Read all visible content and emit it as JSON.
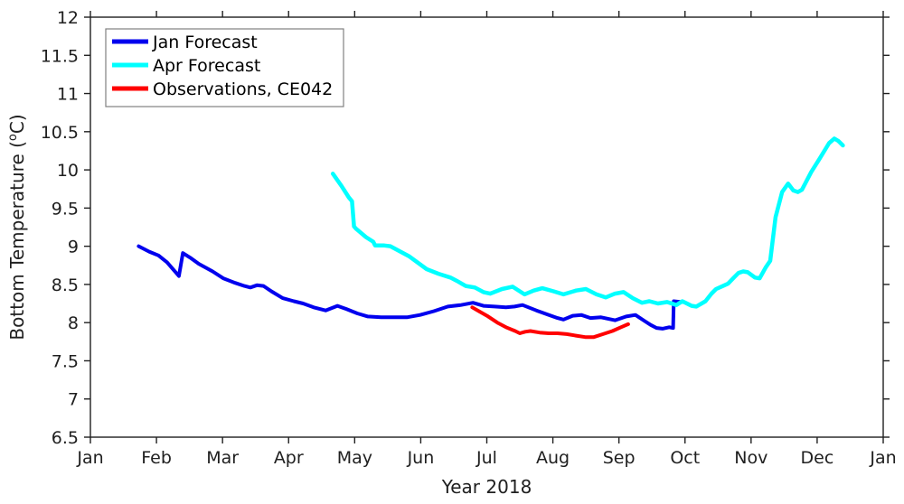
{
  "page": {
    "background": "#ffffff"
  },
  "chart_data": {
    "type": "line",
    "title": "",
    "xlabel": "Year 2018",
    "ylabel_prefix": "Bottom Temperature (",
    "ylabel_superscript": "o",
    "ylabel_suffix": "C)",
    "grid": false,
    "axis_color": "#202020",
    "tick_dir": "out",
    "x_axis": {
      "unit": "months (0 = Jan 1 2018, 12 = Jan 1 2019)",
      "range": [
        0,
        12
      ],
      "tick_positions": [
        0,
        1,
        2,
        3,
        4,
        5,
        6,
        7,
        8,
        9,
        10,
        11,
        12
      ],
      "tick_labels": [
        "Jan",
        "Feb",
        "Mar",
        "Apr",
        "May",
        "Jun",
        "Jul",
        "Aug",
        "Sep",
        "Oct",
        "Nov",
        "Dec",
        "Jan"
      ]
    },
    "y_axis": {
      "range": [
        6.5,
        12
      ],
      "tick_values": [
        6.5,
        7,
        7.5,
        8,
        8.5,
        9,
        9.5,
        10,
        10.5,
        11,
        11.5,
        12
      ],
      "tick_labels": [
        "6.5",
        "7",
        "7.5",
        "8",
        "8.5",
        "9",
        "9.5",
        "10",
        "10.5",
        "11",
        "11.5",
        "12"
      ]
    },
    "legend": {
      "position": "top-left",
      "border_color": "#808080",
      "background": "#ffffff",
      "entries": [
        "Jan Forecast",
        "Apr Forecast",
        "Observations, CE042"
      ]
    },
    "series": [
      {
        "name": "Jan Forecast",
        "color": "#0000EE",
        "line_width": 4,
        "points": [
          [
            0.73,
            9.0
          ],
          [
            0.89,
            8.93
          ],
          [
            1.03,
            8.88
          ],
          [
            1.16,
            8.79
          ],
          [
            1.34,
            8.61
          ],
          [
            1.4,
            8.91
          ],
          [
            1.51,
            8.85
          ],
          [
            1.64,
            8.77
          ],
          [
            1.85,
            8.67
          ],
          [
            2.01,
            8.58
          ],
          [
            2.19,
            8.52
          ],
          [
            2.33,
            8.48
          ],
          [
            2.42,
            8.46
          ],
          [
            2.52,
            8.49
          ],
          [
            2.62,
            8.48
          ],
          [
            2.74,
            8.41
          ],
          [
            2.91,
            8.32
          ],
          [
            3.08,
            8.28
          ],
          [
            3.22,
            8.25
          ],
          [
            3.38,
            8.2
          ],
          [
            3.56,
            8.16
          ],
          [
            3.74,
            8.22
          ],
          [
            3.87,
            8.18
          ],
          [
            4.04,
            8.12
          ],
          [
            4.2,
            8.08
          ],
          [
            4.4,
            8.07
          ],
          [
            4.6,
            8.07
          ],
          [
            4.79,
            8.07
          ],
          [
            4.99,
            8.1
          ],
          [
            5.2,
            8.15
          ],
          [
            5.41,
            8.21
          ],
          [
            5.61,
            8.23
          ],
          [
            5.79,
            8.26
          ],
          [
            5.95,
            8.22
          ],
          [
            6.12,
            8.21
          ],
          [
            6.29,
            8.2
          ],
          [
            6.42,
            8.21
          ],
          [
            6.54,
            8.23
          ],
          [
            6.75,
            8.16
          ],
          [
            6.94,
            8.1
          ],
          [
            7.07,
            8.06
          ],
          [
            7.16,
            8.04
          ],
          [
            7.3,
            8.09
          ],
          [
            7.43,
            8.1
          ],
          [
            7.57,
            8.06
          ],
          [
            7.73,
            8.07
          ],
          [
            7.94,
            8.03
          ],
          [
            8.11,
            8.08
          ],
          [
            8.25,
            8.1
          ],
          [
            8.39,
            8.02
          ],
          [
            8.48,
            7.97
          ],
          [
            8.57,
            7.93
          ],
          [
            8.66,
            7.92
          ],
          [
            8.76,
            7.94
          ],
          [
            8.82,
            7.93
          ],
          [
            8.83,
            8.28
          ],
          [
            8.94,
            8.27
          ]
        ]
      },
      {
        "name": "Apr Forecast",
        "color": "#00FFFF",
        "line_width": 4.5,
        "points": [
          [
            3.67,
            9.95
          ],
          [
            3.8,
            9.79
          ],
          [
            3.91,
            9.64
          ],
          [
            3.96,
            9.59
          ],
          [
            3.99,
            9.26
          ],
          [
            4.02,
            9.23
          ],
          [
            4.17,
            9.12
          ],
          [
            4.28,
            9.06
          ],
          [
            4.31,
            9.01
          ],
          [
            4.45,
            9.01
          ],
          [
            4.54,
            9.0
          ],
          [
            4.82,
            8.87
          ],
          [
            5.09,
            8.7
          ],
          [
            5.27,
            8.64
          ],
          [
            5.45,
            8.59
          ],
          [
            5.54,
            8.55
          ],
          [
            5.68,
            8.48
          ],
          [
            5.82,
            8.46
          ],
          [
            5.95,
            8.4
          ],
          [
            6.05,
            8.38
          ],
          [
            6.23,
            8.44
          ],
          [
            6.39,
            8.47
          ],
          [
            6.57,
            8.37
          ],
          [
            6.71,
            8.42
          ],
          [
            6.84,
            8.45
          ],
          [
            7.01,
            8.41
          ],
          [
            7.16,
            8.37
          ],
          [
            7.35,
            8.42
          ],
          [
            7.5,
            8.44
          ],
          [
            7.66,
            8.37
          ],
          [
            7.8,
            8.33
          ],
          [
            7.94,
            8.38
          ],
          [
            8.07,
            8.4
          ],
          [
            8.21,
            8.32
          ],
          [
            8.35,
            8.26
          ],
          [
            8.46,
            8.28
          ],
          [
            8.59,
            8.25
          ],
          [
            8.73,
            8.27
          ],
          [
            8.87,
            8.23
          ],
          [
            8.96,
            8.28
          ],
          [
            9.1,
            8.22
          ],
          [
            9.17,
            8.21
          ],
          [
            9.31,
            8.28
          ],
          [
            9.4,
            8.38
          ],
          [
            9.47,
            8.44
          ],
          [
            9.55,
            8.47
          ],
          [
            9.65,
            8.51
          ],
          [
            9.74,
            8.59
          ],
          [
            9.81,
            8.65
          ],
          [
            9.88,
            8.67
          ],
          [
            9.95,
            8.66
          ],
          [
            10.06,
            8.59
          ],
          [
            10.13,
            8.58
          ],
          [
            10.22,
            8.72
          ],
          [
            10.29,
            8.81
          ],
          [
            10.37,
            9.38
          ],
          [
            10.47,
            9.71
          ],
          [
            10.56,
            9.82
          ],
          [
            10.64,
            9.73
          ],
          [
            10.71,
            9.71
          ],
          [
            10.77,
            9.74
          ],
          [
            10.91,
            9.97
          ],
          [
            11.04,
            10.15
          ],
          [
            11.18,
            10.35
          ],
          [
            11.26,
            10.41
          ],
          [
            11.32,
            10.38
          ],
          [
            11.39,
            10.32
          ]
        ]
      },
      {
        "name": "Observations, CE042",
        "color": "#FF0000",
        "line_width": 4,
        "points": [
          [
            5.78,
            8.2
          ],
          [
            5.88,
            8.15
          ],
          [
            6.02,
            8.08
          ],
          [
            6.16,
            8.0
          ],
          [
            6.29,
            7.94
          ],
          [
            6.43,
            7.89
          ],
          [
            6.5,
            7.86
          ],
          [
            6.58,
            7.88
          ],
          [
            6.66,
            7.89
          ],
          [
            6.8,
            7.87
          ],
          [
            6.94,
            7.86
          ],
          [
            7.07,
            7.86
          ],
          [
            7.21,
            7.85
          ],
          [
            7.35,
            7.83
          ],
          [
            7.49,
            7.81
          ],
          [
            7.62,
            7.81
          ],
          [
            7.76,
            7.85
          ],
          [
            7.9,
            7.89
          ],
          [
            8.03,
            7.94
          ],
          [
            8.14,
            7.98
          ]
        ]
      }
    ]
  }
}
